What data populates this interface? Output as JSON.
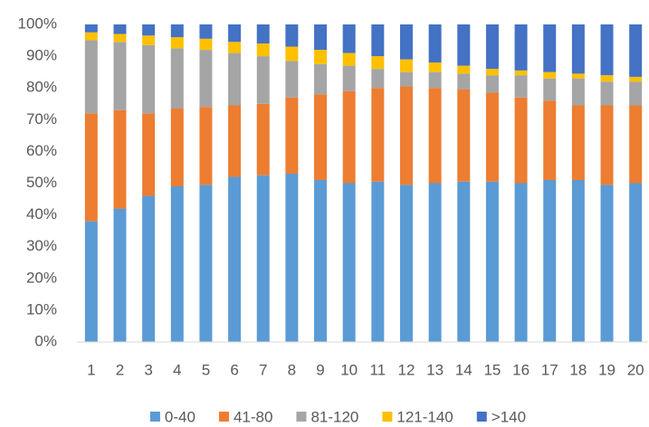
{
  "chart_data": {
    "type": "stacked_bar_percent",
    "categories": [
      "1",
      "2",
      "3",
      "4",
      "5",
      "6",
      "7",
      "8",
      "9",
      "10",
      "11",
      "12",
      "13",
      "14",
      "15",
      "16",
      "17",
      "18",
      "19",
      "20"
    ],
    "series": [
      {
        "name": "0-40",
        "color": "#5b9bd5",
        "values": [
          38,
          42,
          46,
          49,
          49.5,
          52,
          52.5,
          53,
          51,
          50,
          50.5,
          49.5,
          50,
          50.5,
          50.5,
          50,
          51,
          51,
          49.5,
          50
        ]
      },
      {
        "name": "41-80",
        "color": "#ed7d31",
        "values": [
          34,
          31,
          26,
          24.5,
          24.5,
          22.5,
          22.5,
          24,
          27,
          29,
          29.5,
          31,
          30,
          29,
          28,
          27,
          25,
          23.5,
          25,
          24.5
        ]
      },
      {
        "name": "81-120",
        "color": "#a5a5a5",
        "values": [
          23,
          21.5,
          21.5,
          19,
          18,
          16.5,
          15,
          11.5,
          9.5,
          8,
          6,
          4.5,
          5,
          5,
          5.5,
          7,
          7,
          8.5,
          7.5,
          7.5
        ]
      },
      {
        "name": "121-140",
        "color": "#ffc000",
        "values": [
          2.5,
          2.5,
          3,
          3.5,
          3.5,
          3.5,
          4,
          4.5,
          4.5,
          4,
          4,
          4,
          3,
          2.5,
          2,
          1.5,
          2,
          1.5,
          2,
          1.5
        ]
      },
      {
        "name": ">140",
        "color": "#4472c4",
        "values": [
          2.5,
          3,
          3.5,
          4,
          4.5,
          5.5,
          6,
          7,
          8,
          9,
          10,
          11,
          12,
          13,
          14,
          14.5,
          15,
          15.5,
          16,
          16.5
        ]
      }
    ],
    "ylim": [
      0,
      100
    ],
    "yticks": [
      {
        "value": 0,
        "label": "0%"
      },
      {
        "value": 10,
        "label": "10%"
      },
      {
        "value": 20,
        "label": "20%"
      },
      {
        "value": 30,
        "label": "30%"
      },
      {
        "value": 40,
        "label": "40%"
      },
      {
        "value": 50,
        "label": "50%"
      },
      {
        "value": 60,
        "label": "60%"
      },
      {
        "value": 70,
        "label": "70%"
      },
      {
        "value": 80,
        "label": "80%"
      },
      {
        "value": 90,
        "label": "90%"
      },
      {
        "value": 100,
        "label": "100%"
      }
    ],
    "grid": false,
    "legend": "bottom"
  }
}
